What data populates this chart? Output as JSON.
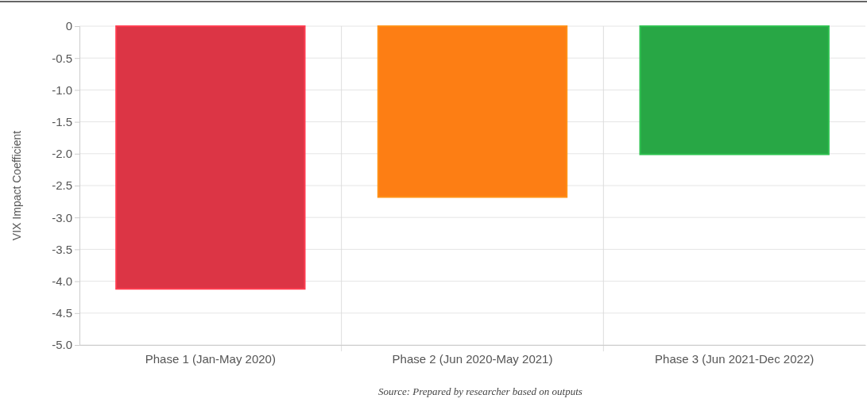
{
  "chart_data": {
    "type": "bar",
    "ylabel": "VIX Impact Coefficient",
    "categories": [
      "Phase 1 (Jan-May 2020)",
      "Phase 2 (Jun 2020-May 2021)",
      "Phase 3 (Jun 2021-Dec 2022)"
    ],
    "values": [
      -4.12,
      -2.68,
      -2.01
    ],
    "colors": [
      "#dc3545",
      "#fd7e14",
      "#28a745"
    ],
    "ylim": [
      -5,
      0
    ],
    "yticks": [
      {
        "value": 0,
        "label": "0"
      },
      {
        "value": -0.5,
        "label": "-0.5"
      },
      {
        "value": -1,
        "label": "-1.0"
      },
      {
        "value": -1.5,
        "label": "-1.5"
      },
      {
        "value": -2,
        "label": "-2.0"
      },
      {
        "value": -2.5,
        "label": "-2.5"
      },
      {
        "value": -3,
        "label": "-3.0"
      },
      {
        "value": -3.5,
        "label": "-3.5"
      },
      {
        "value": -4,
        "label": "-4.0"
      },
      {
        "value": -4.5,
        "label": "-4.5"
      },
      {
        "value": -5,
        "label": "-5.0"
      }
    ],
    "grid": true,
    "annotations": [
      "Source: Prepared by researcher based on outputs"
    ]
  }
}
